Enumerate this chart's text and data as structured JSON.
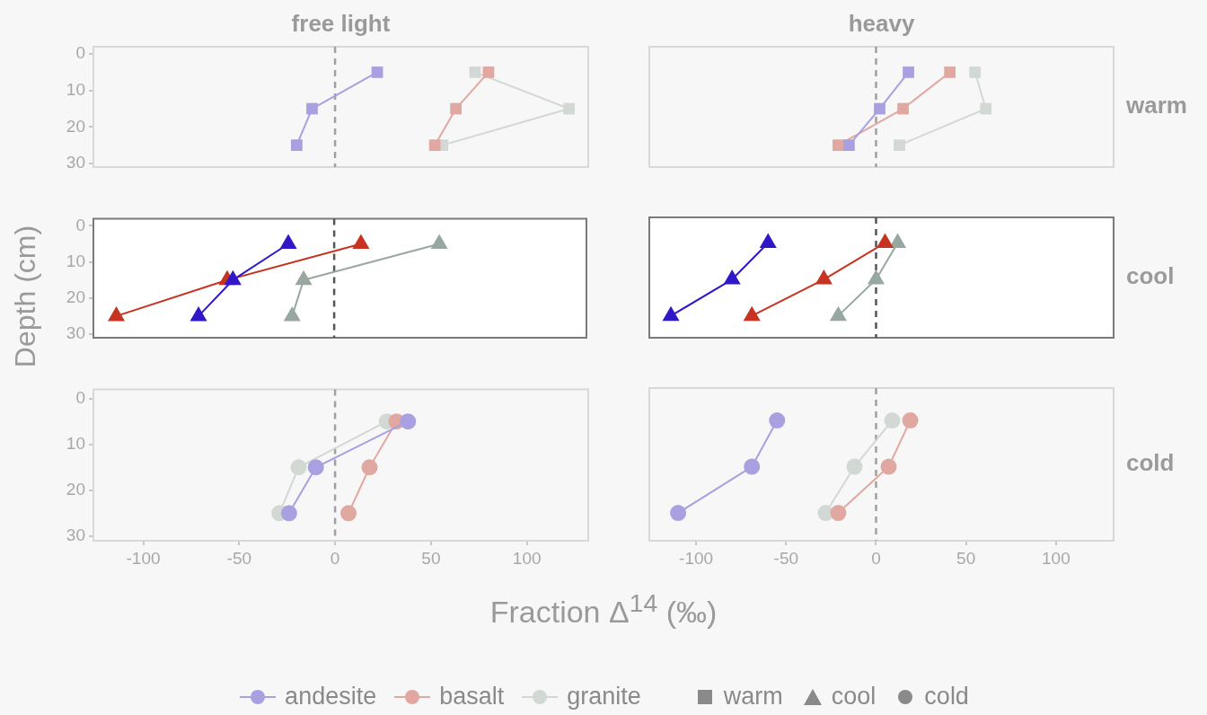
{
  "chart_data": [
    {
      "type": "line",
      "title": "free light",
      "marker": "square",
      "legend": "bottom",
      "xlim": [
        -126,
        132
      ],
      "ylim": [
        31,
        -2
      ],
      "xticks": [
        -100,
        -50,
        0,
        50,
        100
      ],
      "yticks": [
        0,
        10,
        20,
        30
      ],
      "tick_labels": "y",
      "ref_lines": [
        {
          "axis": "x",
          "value": 0,
          "line_style": "dashed",
          "color": "#a0a0a0"
        }
      ],
      "series": [
        {
          "name": "andesite",
          "color": "#a8a0e0",
          "x": [
            22,
            -12,
            -20
          ],
          "values": [
            5,
            15,
            25
          ]
        },
        {
          "name": "basalt",
          "color": "#e0a8a0",
          "x": [
            80,
            63,
            52
          ],
          "values": [
            5,
            15,
            25
          ]
        },
        {
          "name": "granite",
          "color": "#d2d8d4",
          "x": [
            73,
            122,
            56
          ],
          "values": [
            5,
            15,
            25
          ]
        }
      ]
    },
    {
      "type": "line",
      "title": "heavy",
      "annotations": [
        "warm"
      ],
      "marker": "square",
      "xlim": [
        -126,
        132
      ],
      "ylim": [
        31,
        -2
      ],
      "xticks": [
        -100,
        -50,
        0,
        50,
        100
      ],
      "yticks": [
        0,
        10,
        20,
        30
      ],
      "tick_labels": false,
      "ref_lines": [
        {
          "axis": "x",
          "value": 0,
          "line_style": "dashed",
          "color": "#a0a0a0"
        }
      ],
      "series": [
        {
          "color": "#a8a0e0",
          "x": [
            18,
            2,
            -15
          ],
          "values": [
            5,
            15,
            25
          ]
        },
        {
          "color": "#e0a8a0",
          "x": [
            41,
            15,
            -21
          ],
          "values": [
            5,
            15,
            25
          ]
        },
        {
          "color": "#d2d8d4",
          "x": [
            55,
            61,
            13
          ],
          "values": [
            5,
            15,
            25
          ]
        }
      ]
    },
    {
      "type": "line",
      "ylabel": "Depth (cm)",
      "marker": "triangle",
      "xlim": [
        -126,
        132
      ],
      "ylim": [
        31,
        -2
      ],
      "xticks": [
        -100,
        -50,
        0,
        50,
        100
      ],
      "yticks": [
        0,
        10,
        20,
        30
      ],
      "tick_labels": "y",
      "ref_lines": [
        {
          "axis": "x",
          "value": 0,
          "line_style": "dashed",
          "color": "#555555"
        }
      ],
      "series": [
        {
          "color": "#3018c8",
          "x": [
            -24,
            -53,
            -71
          ],
          "values": [
            5,
            15,
            25
          ]
        },
        {
          "color": "#c83220",
          "x": [
            14,
            -56,
            -114
          ],
          "values": [
            5,
            15,
            25
          ]
        },
        {
          "color": "#98a8a0",
          "x": [
            55,
            -16,
            -22
          ],
          "values": [
            5,
            15,
            25
          ]
        }
      ]
    },
    {
      "type": "line",
      "annotations": [
        "cool"
      ],
      "marker": "triangle",
      "xlim": [
        -126,
        132
      ],
      "ylim": [
        31,
        -2
      ],
      "xticks": [
        -100,
        -50,
        0,
        50,
        100
      ],
      "yticks": [
        0,
        10,
        20,
        30
      ],
      "tick_labels": false,
      "ref_lines": [
        {
          "axis": "x",
          "value": 0,
          "line_style": "dashed",
          "color": "#555555"
        }
      ],
      "series": [
        {
          "color": "#3018c8",
          "x": [
            -60,
            -80,
            -114
          ],
          "values": [
            5,
            15,
            25
          ]
        },
        {
          "color": "#c83220",
          "x": [
            5,
            -29,
            -69
          ],
          "values": [
            5,
            15,
            25
          ]
        },
        {
          "color": "#98a8a0",
          "x": [
            12,
            0,
            -21
          ],
          "values": [
            5,
            15,
            25
          ]
        }
      ]
    },
    {
      "type": "line",
      "xlabel": "Fraction Δ$^{14}$ (‰)",
      "marker": "circle",
      "xlim": [
        -126,
        132
      ],
      "ylim": [
        31,
        -2
      ],
      "xticks": [
        -100,
        -50,
        0,
        50,
        100
      ],
      "yticks": [
        0,
        10,
        20,
        30
      ],
      "ref_lines": [
        {
          "axis": "x",
          "value": 0,
          "line_style": "dashed",
          "color": "#a0a0a0"
        }
      ],
      "series": [
        {
          "color": "#a8a0e0",
          "x": [
            38,
            -10,
            -24
          ],
          "values": [
            5,
            15,
            25
          ]
        },
        {
          "color": "#e0a8a0",
          "x": [
            32,
            18,
            7
          ],
          "values": [
            5,
            15,
            25
          ]
        },
        {
          "color": "#d2d8d4",
          "x": [
            27,
            -19,
            -29
          ],
          "values": [
            5,
            15,
            25
          ]
        }
      ]
    },
    {
      "type": "line",
      "annotations": [
        "cold"
      ],
      "marker": "circle",
      "xlim": [
        -126,
        132
      ],
      "ylim": [
        31,
        -2
      ],
      "xticks": [
        -100,
        -50,
        0,
        50,
        100
      ],
      "yticks": [
        0,
        10,
        20,
        30
      ],
      "tick_labels": "x",
      "ref_lines": [
        {
          "axis": "x",
          "value": 0,
          "line_style": "dashed",
          "color": "#a0a0a0"
        }
      ],
      "series": [
        {
          "color": "#a8a0e0",
          "x": [
            -55,
            -69,
            -110
          ],
          "values": [
            5,
            15,
            25
          ]
        },
        {
          "color": "#e0a8a0",
          "x": [
            19,
            7,
            -21
          ],
          "values": [
            5,
            15,
            25
          ]
        },
        {
          "color": "#d2d8d4",
          "x": [
            9,
            -12,
            -28
          ],
          "values": [
            5,
            15,
            25
          ]
        }
      ]
    }
  ]
}
